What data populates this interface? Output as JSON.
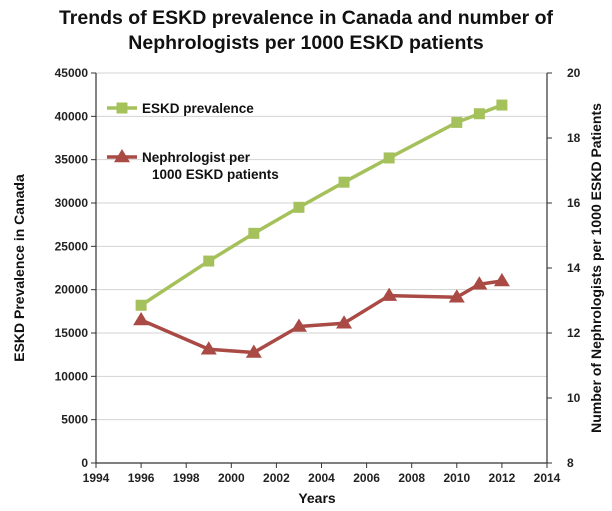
{
  "chart_data": {
    "type": "line",
    "title_lines": [
      "Trends of ESKD prevalence in Canada and number of",
      "Nephrologists per 1000 ESKD patients"
    ],
    "xlabel": "Years",
    "ylabel_left": "ESKD Prevalence in Canada",
    "ylabel_right": "Number of Nephrologists per 1000 ESKD Patients",
    "xlim": [
      1994,
      2014
    ],
    "x_ticks": [
      1994,
      1996,
      1998,
      2000,
      2002,
      2004,
      2006,
      2008,
      2010,
      2012,
      2014
    ],
    "ylim_left": [
      0,
      45000
    ],
    "y_ticks_left": [
      0,
      5000,
      10000,
      15000,
      20000,
      25000,
      30000,
      35000,
      40000,
      45000
    ],
    "ylim_right": [
      8,
      20
    ],
    "y_ticks_right": [
      8,
      10,
      12,
      14,
      16,
      18,
      20
    ],
    "grid": "horizontal",
    "legend_position": "top-left inside",
    "series": [
      {
        "name": "ESKD prevalence",
        "axis": "left",
        "marker": "square",
        "color": "#a5c15b",
        "x": [
          1996,
          1999,
          2001,
          2003,
          2005,
          2007,
          2010,
          2011,
          2012
        ],
        "y": [
          18200,
          23300,
          26500,
          29500,
          32400,
          35200,
          39300,
          40300,
          41300
        ]
      },
      {
        "name": "Nephrologist per\n1000 ESKD patients",
        "axis": "right",
        "marker": "triangle",
        "color": "#a94a45",
        "x": [
          1996,
          1999,
          2001,
          2003,
          2005,
          2007,
          2010,
          2011,
          2012
        ],
        "y": [
          12.4,
          11.5,
          11.4,
          12.2,
          12.3,
          13.15,
          13.1,
          13.5,
          13.6
        ]
      }
    ]
  }
}
